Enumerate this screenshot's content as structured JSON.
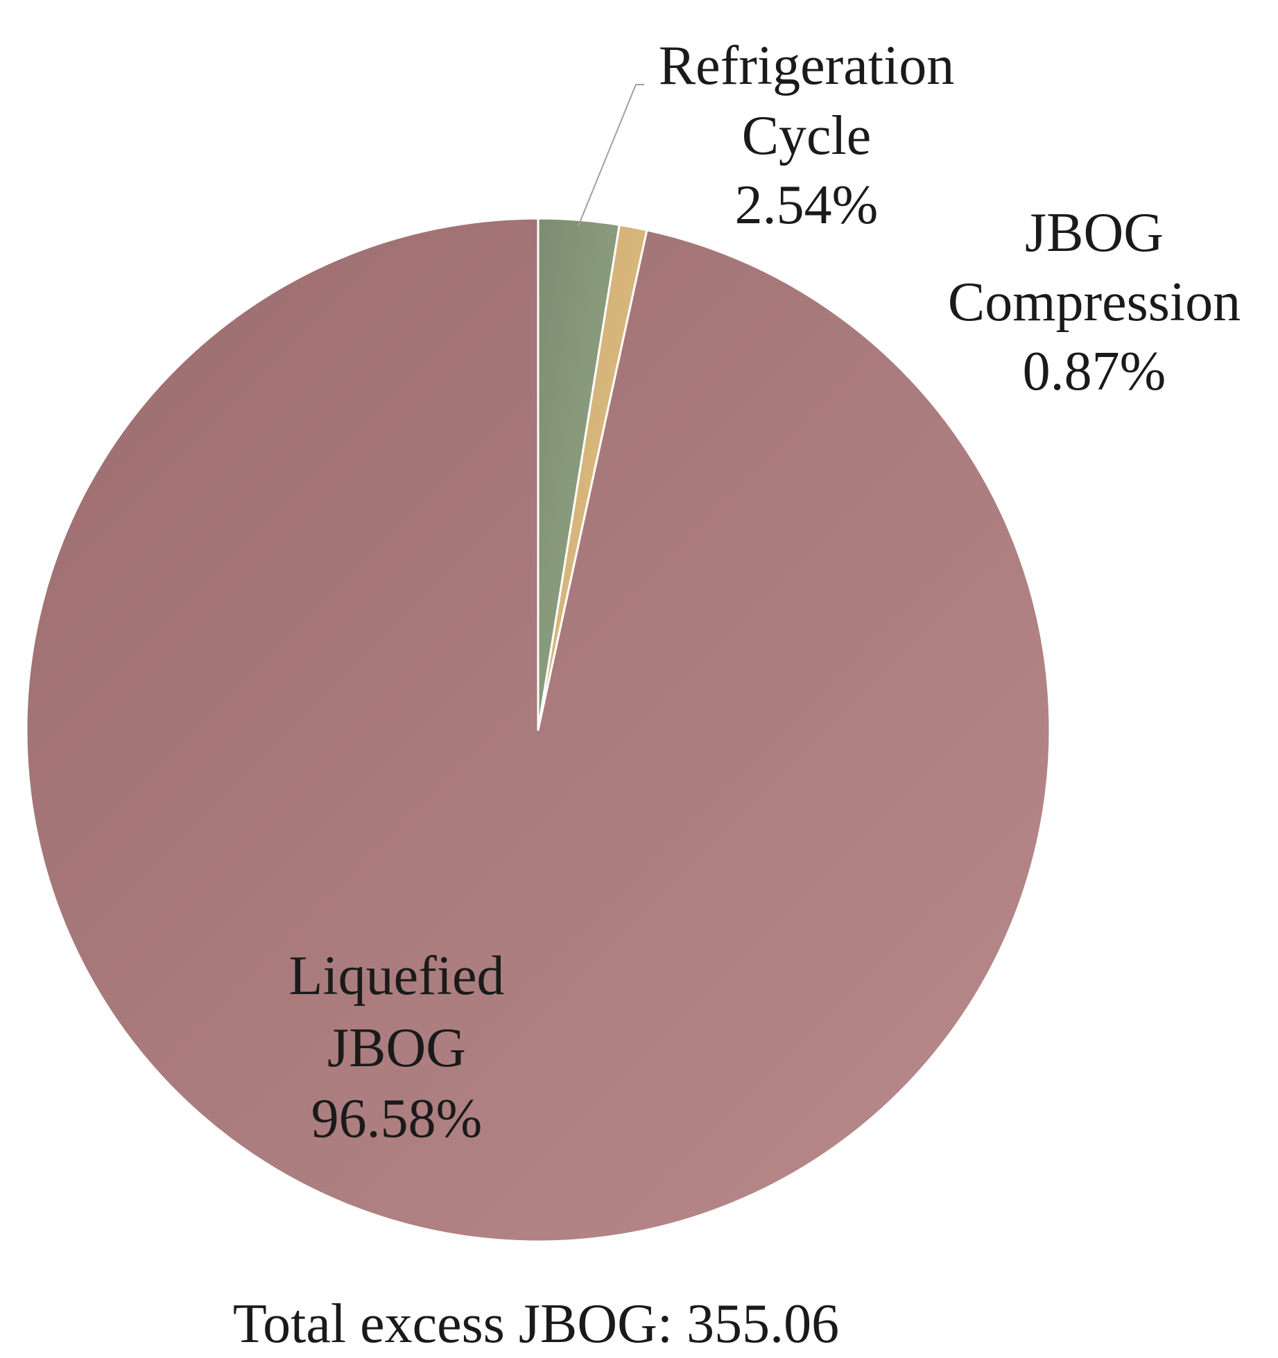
{
  "chart_data": {
    "type": "pie",
    "slices": [
      {
        "label_lines": [
          "Refrigeration",
          "Cycle"
        ],
        "pct_label": "2.54%",
        "value": 2.54,
        "color": "#85977a"
      },
      {
        "label_lines": [
          "JBOG",
          "Compression"
        ],
        "pct_label": "0.87%",
        "value": 0.87,
        "color": "#d7b57a"
      },
      {
        "label_lines": [
          "Liquefied",
          "JBOG"
        ],
        "pct_label": "96.58%",
        "value": 96.58,
        "color": "#a9787a"
      }
    ],
    "start_angle_deg": 0,
    "direction": "clockwise",
    "footer": "Total excess JBOG: 355.06"
  }
}
